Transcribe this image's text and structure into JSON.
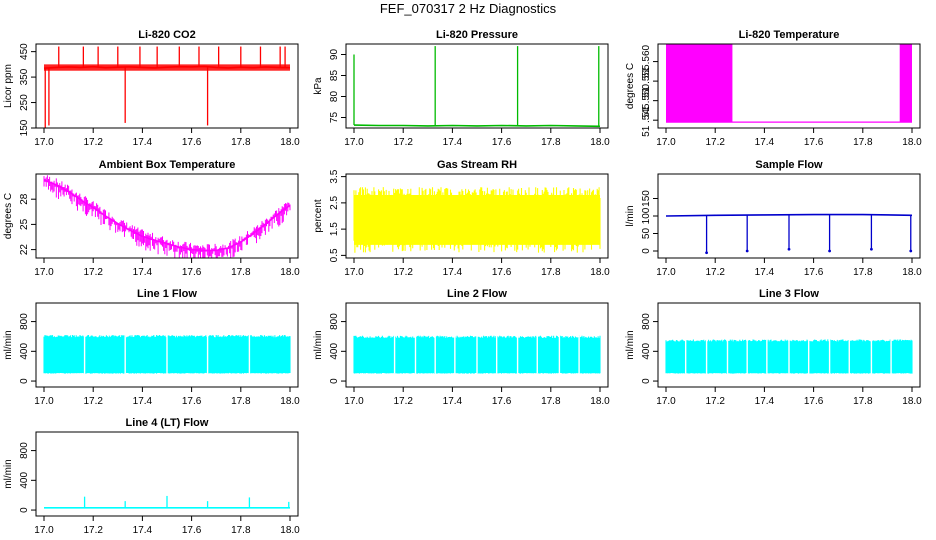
{
  "title": "FEF_070317  2 Hz Diagnostics",
  "chart_data": [
    {
      "id": "p1",
      "type": "line",
      "title": "Li-820 CO2",
      "ylabel": "Licor ppm",
      "color": "#ff0000",
      "xlim": [
        17.0,
        18.0
      ],
      "ylim": [
        150,
        480
      ],
      "xticks": [
        17.0,
        17.2,
        17.4,
        17.6,
        17.8,
        18.0
      ],
      "yticks": [
        150,
        250,
        350,
        450
      ],
      "x": [
        17.0,
        17.05,
        17.1,
        17.15,
        17.2,
        17.25,
        17.3,
        17.35,
        17.4,
        17.45,
        17.5,
        17.55,
        17.6,
        17.65,
        17.7,
        17.75,
        17.8,
        17.85,
        17.9,
        17.95,
        18.0
      ],
      "y": [
        385,
        388,
        390,
        388,
        391,
        387,
        389,
        390,
        388,
        386,
        389,
        391,
        390,
        392,
        388,
        386,
        389,
        387,
        390,
        388,
        387
      ],
      "band": [
        375,
        400
      ],
      "spikes": [
        {
          "x": 17.005,
          "y": 150
        },
        {
          "x": 17.02,
          "y": 160
        },
        {
          "x": 17.33,
          "y": 170
        },
        {
          "x": 17.665,
          "y": 160
        },
        {
          "x": 17.06,
          "y": 470
        },
        {
          "x": 17.16,
          "y": 470
        },
        {
          "x": 17.22,
          "y": 470
        },
        {
          "x": 17.3,
          "y": 470
        },
        {
          "x": 17.39,
          "y": 470
        },
        {
          "x": 17.46,
          "y": 470
        },
        {
          "x": 17.55,
          "y": 470
        },
        {
          "x": 17.63,
          "y": 470
        },
        {
          "x": 17.71,
          "y": 470
        },
        {
          "x": 17.8,
          "y": 470
        },
        {
          "x": 17.88,
          "y": 470
        },
        {
          "x": 17.96,
          "y": 470
        },
        {
          "x": 17.98,
          "y": 470
        }
      ]
    },
    {
      "id": "p2",
      "type": "line",
      "title": "Li-820 Pressure",
      "ylabel": "kPa",
      "color": "#00bb00",
      "xlim": [
        17.0,
        18.0
      ],
      "ylim": [
        72.5,
        92.5
      ],
      "xticks": [
        17.0,
        17.2,
        17.4,
        17.6,
        17.8,
        18.0
      ],
      "yticks": [
        75,
        80,
        85,
        90
      ],
      "x": [
        17.0,
        17.1,
        17.2,
        17.3,
        17.4,
        17.5,
        17.6,
        17.7,
        17.8,
        17.9,
        18.0
      ],
      "y": [
        73.2,
        73.1,
        73.1,
        73.0,
        73.1,
        73.0,
        73.1,
        73.0,
        73.1,
        73.0,
        72.9
      ],
      "spikes": [
        {
          "x": 17.0,
          "y": 90
        },
        {
          "x": 17.33,
          "y": 92
        },
        {
          "x": 17.665,
          "y": 92
        },
        {
          "x": 17.995,
          "y": 92
        }
      ]
    },
    {
      "id": "p3",
      "type": "line",
      "title": "Li-820 Temperature",
      "ylabel": "degrees C",
      "color": "#ff00ff",
      "xlim": [
        17.0,
        18.0
      ],
      "ylim": [
        51.543,
        51.5645
      ],
      "xticks": [
        17.0,
        17.2,
        17.4,
        17.6,
        17.8,
        18.0
      ],
      "yticks": [
        51.545,
        51.55,
        51.555,
        51.56
      ],
      "base": 51.5445,
      "top": 51.5645,
      "fill_ranges": [
        [
          17.0,
          17.27
        ],
        [
          17.95,
          18.0
        ]
      ]
    },
    {
      "id": "p4",
      "type": "line",
      "title": "Ambient Box Temperature",
      "ylabel": "degrees C",
      "color": "#ff00ff",
      "xlim": [
        17.0,
        18.0
      ],
      "ylim": [
        21,
        31
      ],
      "xticks": [
        17.0,
        17.2,
        17.4,
        17.6,
        17.8,
        18.0
      ],
      "yticks": [
        22,
        25,
        28
      ],
      "x": [
        17.0,
        17.05,
        17.1,
        17.15,
        17.2,
        17.25,
        17.3,
        17.35,
        17.4,
        17.45,
        17.5,
        17.55,
        17.6,
        17.65,
        17.7,
        17.75,
        17.8,
        17.85,
        17.9,
        17.95,
        18.0
      ],
      "y": [
        30.3,
        29.7,
        28.9,
        27.9,
        27.0,
        26.0,
        25.1,
        24.3,
        23.6,
        23.1,
        22.7,
        22.3,
        22.0,
        21.9,
        21.9,
        22.2,
        22.9,
        23.9,
        25.0,
        26.2,
        27.3
      ],
      "band_width": 1.6
    },
    {
      "id": "p5",
      "type": "area",
      "title": "Gas Stream RH",
      "ylabel": "percent",
      "color": "#ffff00",
      "xlim": [
        17.0,
        18.0
      ],
      "ylim": [
        0.4,
        3.6
      ],
      "xticks": [
        17.0,
        17.2,
        17.4,
        17.6,
        17.8,
        18.0
      ],
      "yticks": [
        0.5,
        1.5,
        2.5,
        3.5
      ],
      "low": 0.6,
      "high": 3.1
    },
    {
      "id": "p6",
      "type": "line",
      "title": "Sample Flow",
      "ylabel": "l/min",
      "color": "#0000cc",
      "xlim": [
        17.0,
        18.0
      ],
      "ylim": [
        -20,
        220
      ],
      "xticks": [
        17.0,
        17.2,
        17.4,
        17.6,
        17.8,
        18.0
      ],
      "yticks": [
        0,
        50,
        100,
        150
      ],
      "x": [
        17.0,
        17.2,
        17.4,
        17.6,
        17.8,
        18.0
      ],
      "y": [
        100,
        102,
        103,
        104,
        104,
        102
      ],
      "spikes": [
        {
          "x": 17.165,
          "y": -5
        },
        {
          "x": 17.33,
          "y": 0
        },
        {
          "x": 17.5,
          "y": 5
        },
        {
          "x": 17.665,
          "y": 0
        },
        {
          "x": 17.835,
          "y": 5
        },
        {
          "x": 17.995,
          "y": 0
        }
      ]
    },
    {
      "id": "p7",
      "type": "area",
      "title": "Line 1 Flow",
      "ylabel": "ml/min",
      "color": "#00ffff",
      "xlim": [
        17.0,
        18.0
      ],
      "ylim": [
        -80,
        1050
      ],
      "xticks": [
        17.0,
        17.2,
        17.4,
        17.6,
        17.8,
        18.0
      ],
      "yticks": [
        0,
        400,
        800
      ],
      "low": 100,
      "high": 620,
      "gaps": [
        17.165,
        17.33,
        17.5,
        17.665,
        17.835
      ]
    },
    {
      "id": "p8",
      "type": "area",
      "title": "Line 2 Flow",
      "ylabel": "ml/min",
      "color": "#00ffff",
      "xlim": [
        17.0,
        18.0
      ],
      "ylim": [
        -80,
        1050
      ],
      "xticks": [
        17.0,
        17.2,
        17.4,
        17.6,
        17.8,
        18.0
      ],
      "yticks": [
        0,
        400,
        800
      ],
      "low": 100,
      "high": 610,
      "gaps": [
        17.165,
        17.25,
        17.33,
        17.41,
        17.5,
        17.58,
        17.665,
        17.745,
        17.835,
        17.915
      ]
    },
    {
      "id": "p9",
      "type": "area",
      "title": "Line 3 Flow",
      "ylabel": "ml/min",
      "color": "#00ffff",
      "xlim": [
        17.0,
        18.0
      ],
      "ylim": [
        -80,
        1050
      ],
      "xticks": [
        17.0,
        17.2,
        17.4,
        17.6,
        17.8,
        18.0
      ],
      "yticks": [
        0,
        400,
        800
      ],
      "low": 100,
      "high": 560,
      "gaps": [
        17.08,
        17.165,
        17.25,
        17.33,
        17.41,
        17.5,
        17.58,
        17.665,
        17.745,
        17.835,
        17.915
      ]
    },
    {
      "id": "p10",
      "type": "line",
      "title": "Line 4 (LT) Flow",
      "ylabel": "ml/min",
      "color": "#00ffff",
      "xlim": [
        17.0,
        18.0
      ],
      "ylim": [
        -80,
        1050
      ],
      "xticks": [
        17.0,
        17.2,
        17.4,
        17.6,
        17.8,
        18.0
      ],
      "yticks": [
        0,
        400,
        800
      ],
      "x": [
        17.0,
        18.0
      ],
      "y": [
        30,
        30
      ],
      "spikes": [
        {
          "x": 17.165,
          "y": 180
        },
        {
          "x": 17.33,
          "y": 120
        },
        {
          "x": 17.5,
          "y": 190
        },
        {
          "x": 17.665,
          "y": 120
        },
        {
          "x": 17.835,
          "y": 170
        },
        {
          "x": 17.995,
          "y": 110
        }
      ]
    }
  ]
}
